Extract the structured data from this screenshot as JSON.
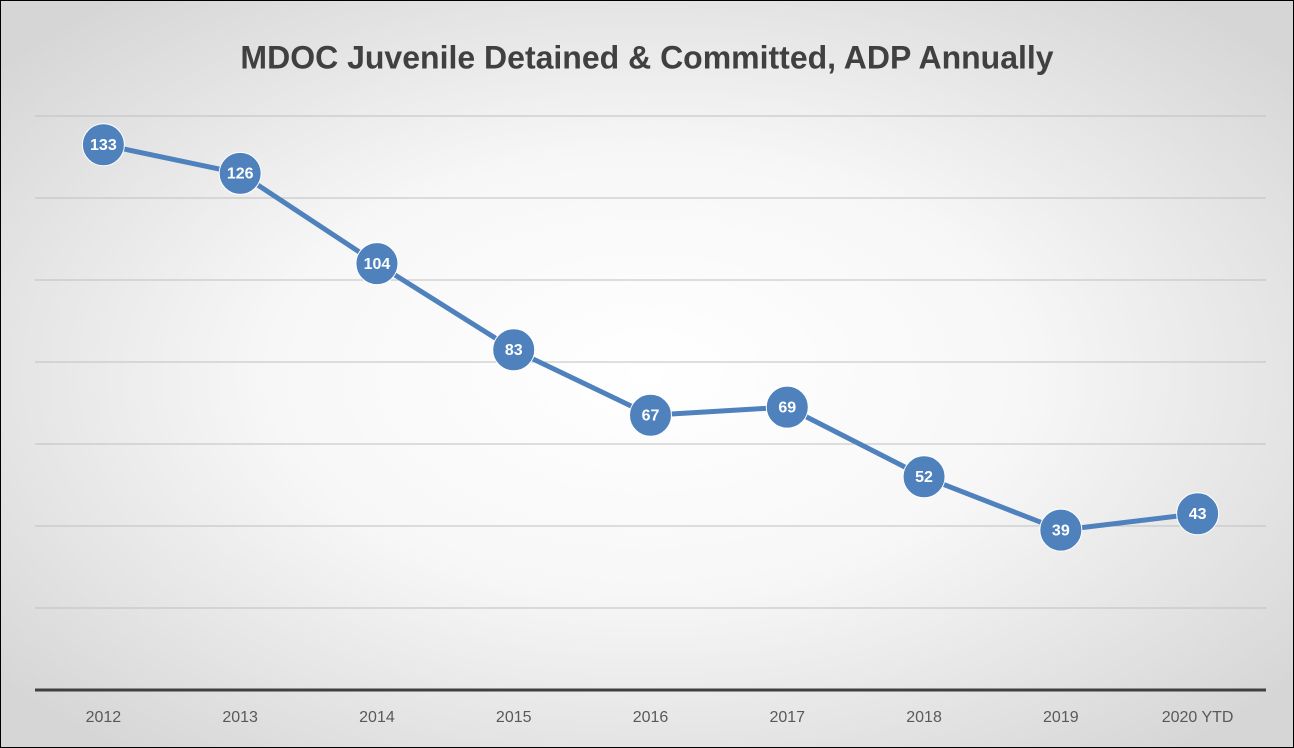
{
  "chart_data": {
    "type": "line",
    "title": "MDOC Juvenile Detained & Committed, ADP Annually",
    "categories": [
      "2012",
      "2013",
      "2014",
      "2015",
      "2016",
      "2017",
      "2018",
      "2019",
      "2020 YTD"
    ],
    "values": [
      133,
      126,
      104,
      83,
      67,
      69,
      52,
      39,
      43
    ],
    "color": "#4f81bd",
    "ylim": [
      0,
      140
    ],
    "yticks": [
      0,
      20,
      40,
      60,
      80,
      100,
      120,
      140
    ],
    "grid": true
  }
}
